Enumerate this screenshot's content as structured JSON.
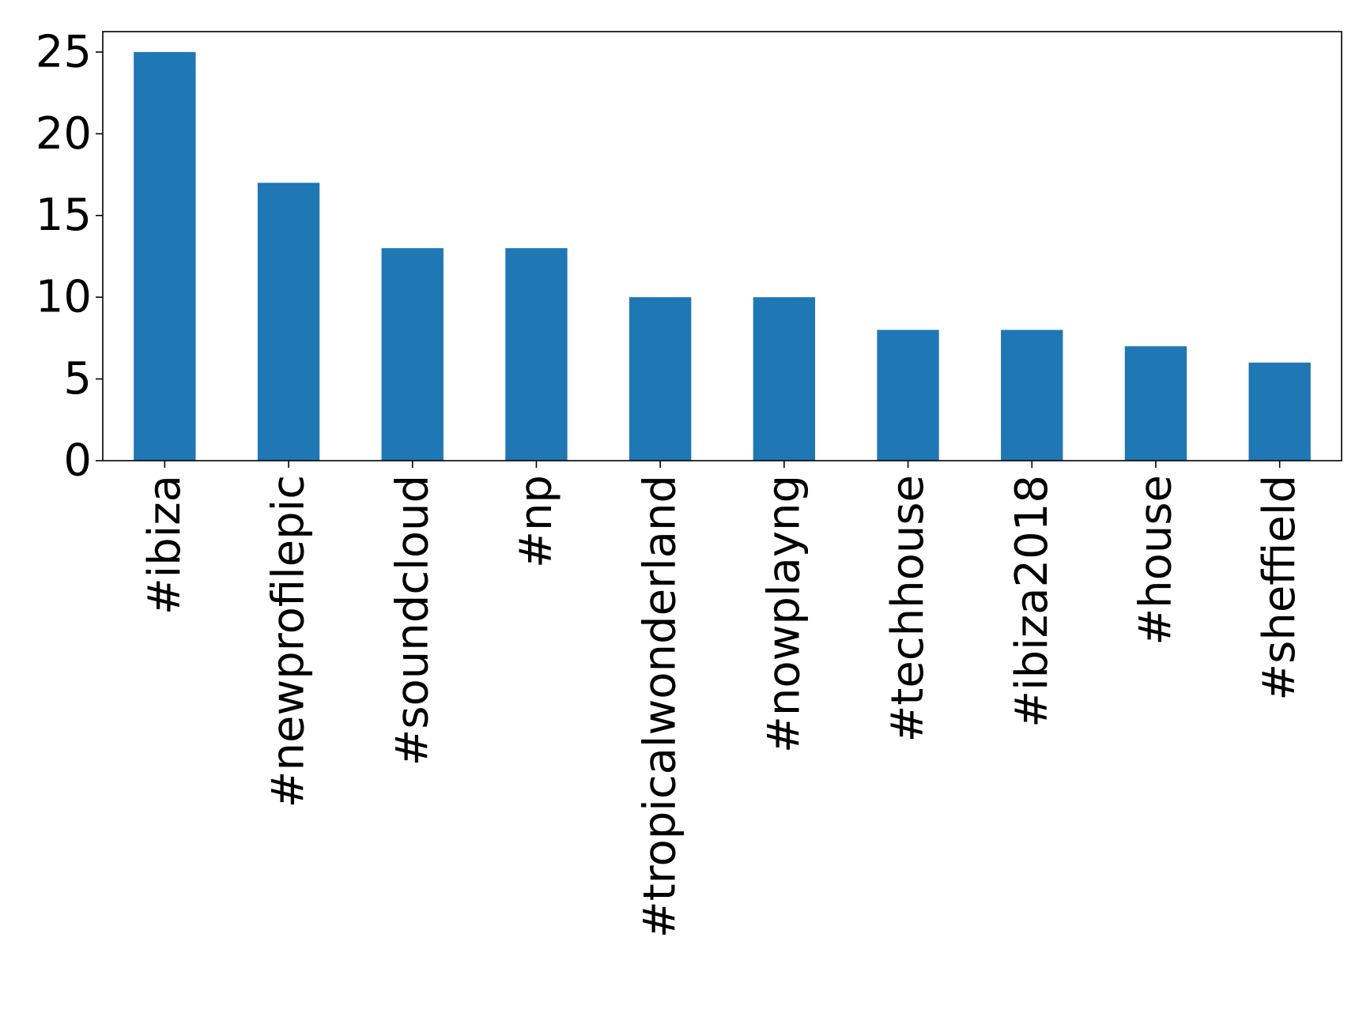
{
  "chart_data": {
    "type": "bar",
    "title": "",
    "xlabel": "",
    "ylabel": "",
    "categories": [
      "#ibiza",
      "#newprofilepic",
      "#soundcloud",
      "#np",
      "#tropicalwonderland",
      "#nowplayng",
      "#techhouse",
      "#ibiza2018",
      "#house",
      "#sheffield"
    ],
    "values": [
      25,
      17,
      13,
      13,
      10,
      10,
      8,
      8,
      7,
      6
    ],
    "ylim": [
      0,
      26.25
    ],
    "yticks": [
      0,
      5,
      10,
      15,
      20,
      25
    ],
    "ytick_labels": [
      "0",
      "5",
      "10",
      "15",
      "20",
      "25"
    ],
    "bar_color": "#1f77b4",
    "grid": false,
    "legend": "none"
  }
}
